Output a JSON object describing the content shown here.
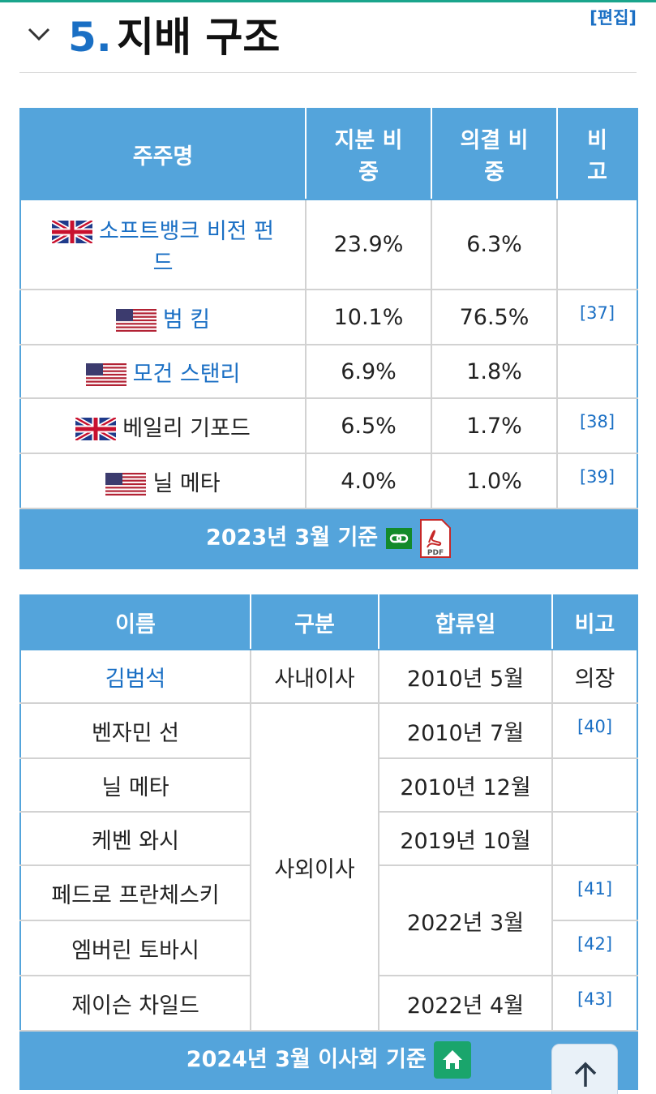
{
  "heading": {
    "number": "5.",
    "title": "지배 구조",
    "edit_label": "[편집]"
  },
  "shareholders": {
    "headers": {
      "name": "주주명",
      "stake": "지분 비\n중",
      "vote": "의결 비\n중",
      "note": "비\n고"
    },
    "rows": [
      {
        "flag": "uk-flag-icon",
        "name": "소프트뱅크 비전 펀\n드",
        "linked": true,
        "stake": "23.9%",
        "vote": "6.3%",
        "ref": ""
      },
      {
        "flag": "us-flag-icon",
        "name": "범 킴",
        "linked": true,
        "stake": "10.1%",
        "vote": "76.5%",
        "ref": "[37]"
      },
      {
        "flag": "us-flag-icon",
        "name": "모건 스탠리",
        "linked": true,
        "stake": "6.9%",
        "vote": "1.8%",
        "ref": ""
      },
      {
        "flag": "uk-flag-icon",
        "name": "베일리 기포드",
        "linked": false,
        "stake": "6.5%",
        "vote": "1.7%",
        "ref": "[38]"
      },
      {
        "flag": "us-flag-icon",
        "name": "닐 메타",
        "linked": false,
        "stake": "4.0%",
        "vote": "1.0%",
        "ref": "[39]"
      }
    ],
    "footer": "2023년 3월 기준"
  },
  "board": {
    "headers": {
      "name": "이름",
      "type": "구분",
      "joined": "합류일",
      "note": "비고"
    },
    "rows": [
      {
        "name": "김범석",
        "linked": true,
        "type": "사내이사",
        "joined": "2010년 5월",
        "note": "의장"
      },
      {
        "name": "벤자민 선",
        "type": "사외이사",
        "joined": "2010년 7월",
        "ref": "[40]"
      },
      {
        "name": "닐 메타",
        "joined": "2010년 12월"
      },
      {
        "name": "케벤 와시",
        "joined": "2019년 10월"
      },
      {
        "name": "페드로 프란체스키",
        "joined": "2022년 3월",
        "ref": "[41]"
      },
      {
        "name": "엠버린 토바시",
        "ref": "[42]"
      },
      {
        "name": "제이슨 차일드",
        "joined": "2022년 4월",
        "ref": "[43]"
      }
    ],
    "footer": "2024년 3월 이사회 기준"
  },
  "icons": {
    "link": "link-icon",
    "pdf": "pdf-icon",
    "home": "home-icon",
    "scroll_top": "arrow-up-icon"
  },
  "colors": {
    "header_blue": "#54a4db",
    "link_blue": "#1a6fc4",
    "link_green": "#138a2a",
    "home_green": "#1aa56c"
  }
}
